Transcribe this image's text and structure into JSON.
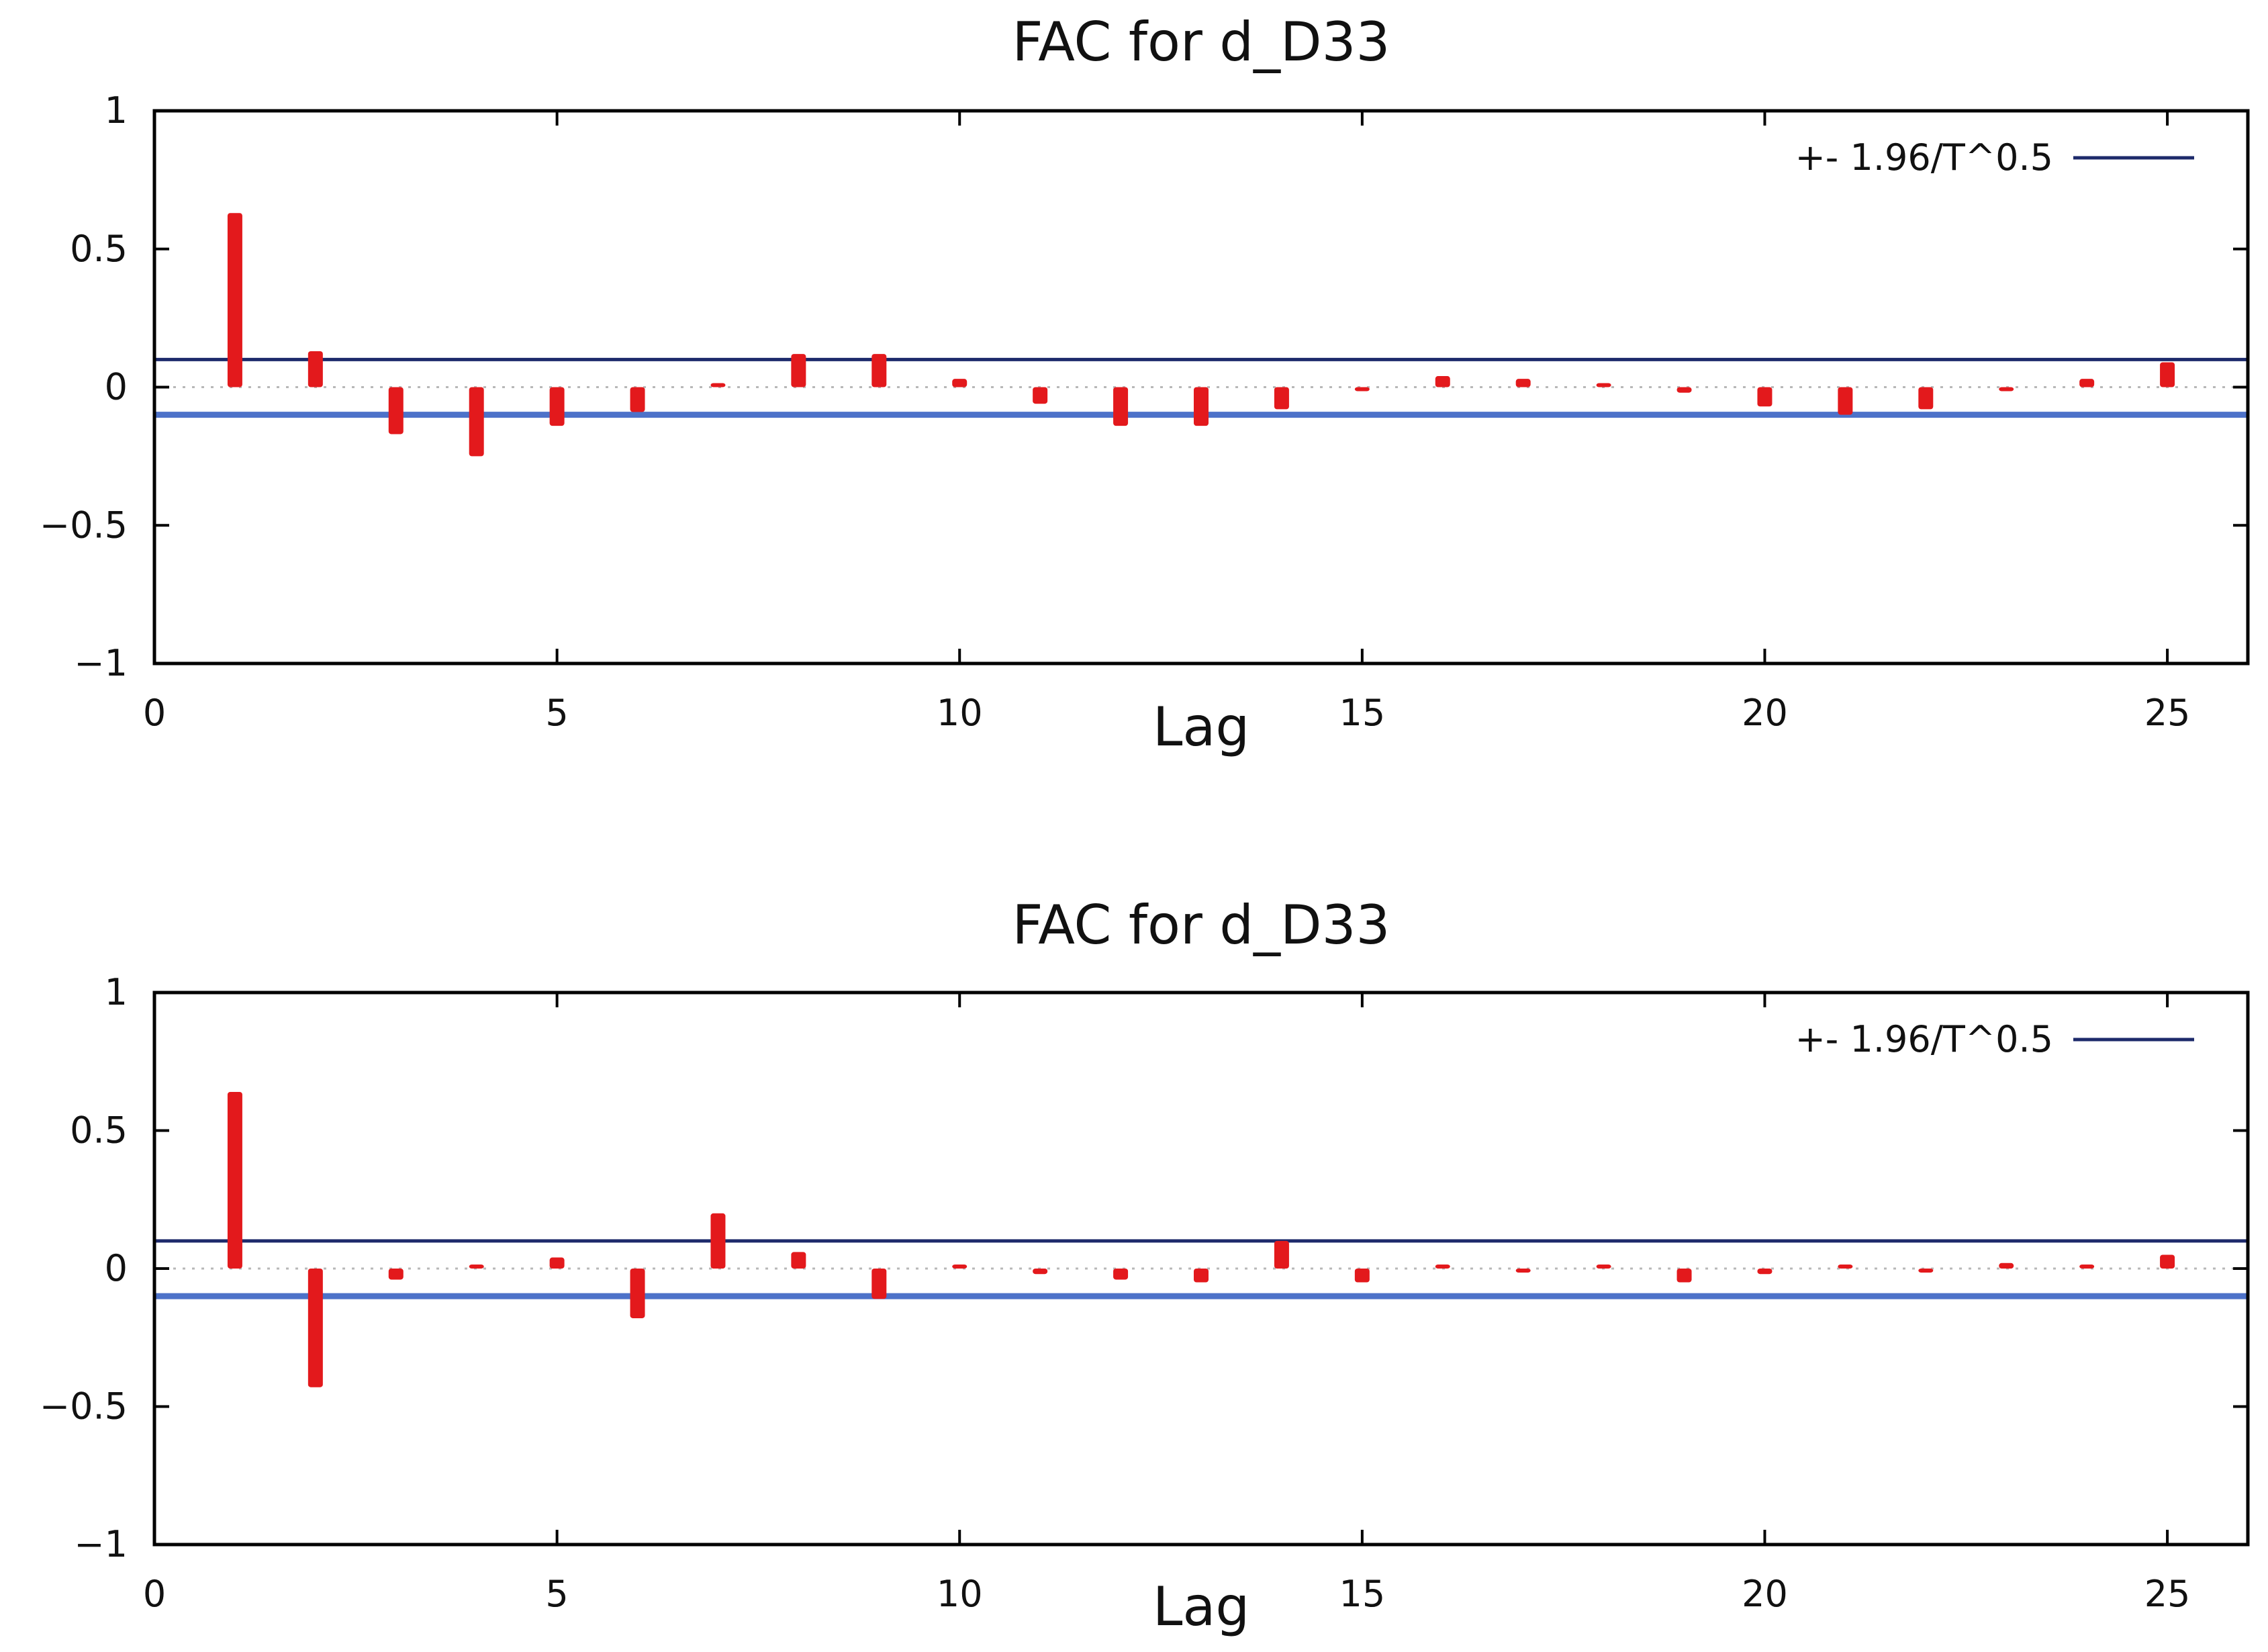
{
  "chart_data": [
    {
      "type": "bar",
      "title": "FAC for d_D33",
      "xlabel": "Lag",
      "ylabel": "",
      "xlim": [
        0,
        26
      ],
      "ylim": [
        -1,
        1
      ],
      "xticks": [
        0,
        5,
        10,
        15,
        20,
        25
      ],
      "xtick_labels": [
        "0",
        "5",
        "10",
        "15",
        "20",
        "25"
      ],
      "yticks": [
        1,
        0.5,
        0,
        -0.5,
        -1
      ],
      "ytick_labels": [
        "1",
        "0.5",
        "0",
        "−0.5",
        "−1"
      ],
      "x": [
        1,
        2,
        3,
        4,
        5,
        6,
        7,
        8,
        9,
        10,
        11,
        12,
        13,
        14,
        15,
        16,
        17,
        18,
        19,
        20,
        21,
        22,
        23,
        24,
        25
      ],
      "values": [
        0.63,
        0.13,
        -0.17,
        -0.25,
        -0.14,
        -0.09,
        0.01,
        0.12,
        0.12,
        0.03,
        -0.06,
        -0.14,
        -0.14,
        -0.08,
        -0.005,
        0.04,
        0.03,
        0.01,
        -0.02,
        -0.07,
        -0.1,
        -0.08,
        -0.01,
        0.03,
        0.09
      ],
      "confidence_band": 0.1,
      "legend": "+- 1.96/T^0.5",
      "legend_position": "top-right",
      "bar_color": "#e3191c",
      "band_colors": {
        "upper": "#1d2a6b",
        "lower": "#4d72c9"
      }
    },
    {
      "type": "bar",
      "title": "FAC for d_D33",
      "xlabel": "Lag",
      "ylabel": "",
      "xlim": [
        0,
        26
      ],
      "ylim": [
        -1,
        1
      ],
      "xticks": [
        0,
        5,
        10,
        15,
        20,
        25
      ],
      "xtick_labels": [
        "0",
        "5",
        "10",
        "15",
        "20",
        "25"
      ],
      "yticks": [
        1,
        0.5,
        0,
        -0.5,
        -1
      ],
      "ytick_labels": [
        "1",
        "0.5",
        "0",
        "−0.5",
        "−1"
      ],
      "x": [
        1,
        2,
        3,
        4,
        5,
        6,
        7,
        8,
        9,
        10,
        11,
        12,
        13,
        14,
        15,
        16,
        17,
        18,
        19,
        20,
        21,
        22,
        23,
        24,
        25
      ],
      "values": [
        0.64,
        -0.43,
        -0.04,
        0,
        0.04,
        -0.18,
        0.2,
        0.06,
        -0.11,
        0,
        -0.02,
        -0.04,
        -0.05,
        0.1,
        -0.05,
        0,
        -0.005,
        0,
        -0.05,
        -0.02,
        0,
        -0.01,
        0.02,
        0,
        0.05
      ],
      "confidence_band": 0.1,
      "legend": "+- 1.96/T^0.5",
      "legend_position": "top-right",
      "bar_color": "#e3191c",
      "band_colors": {
        "upper": "#1d2a6b",
        "lower": "#4d72c9"
      }
    }
  ]
}
